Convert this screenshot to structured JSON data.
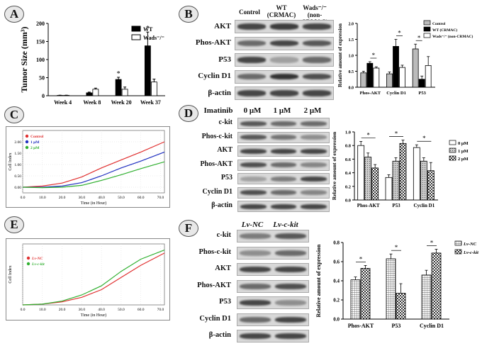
{
  "panels": {
    "A": {
      "letter": "A",
      "chart_data": {
        "type": "bar",
        "ylabel": "Tumor Size (mm³)",
        "ylim": [
          0,
          200
        ],
        "yticks": [
          "0",
          "50",
          "100",
          "150",
          "200"
        ],
        "categories": [
          "Week 4",
          "Week 8",
          "Week 20",
          "Week 37"
        ],
        "series": [
          {
            "name": "WT",
            "values": [
              1,
              8,
              45,
              138
            ],
            "errors": [
              0.5,
              2,
              6,
              38
            ]
          },
          {
            "name": "Wads⁻/⁻",
            "values": [
              1,
              18,
              18,
              38
            ],
            "errors": [
              0.5,
              3,
              6,
              8
            ]
          }
        ],
        "annotations": [
          "*",
          "*"
        ],
        "legend": "top-right"
      }
    },
    "B": {
      "letter": "B",
      "headers": [
        "Control",
        "WT (CRMAC)",
        "Wads⁻/⁻ (non-CRMAC)"
      ],
      "blot_labels": [
        "AKT",
        "Phos-AKT",
        "P53",
        "Cyclin D1",
        "β-actin"
      ],
      "chart_data": {
        "type": "bar",
        "ylabel": "Relative amount of expression",
        "ylim": [
          0,
          2.0
        ],
        "yticks": [
          "0.0",
          "0.5",
          "1.0",
          "1.5",
          "2.0"
        ],
        "categories": [
          "Phos-AKT",
          "Cyclin D1",
          "P53"
        ],
        "series": [
          {
            "name": "Control",
            "values": [
              0.45,
              0.42,
              1.2
            ],
            "errors": [
              0.05,
              0.06,
              0.15
            ]
          },
          {
            "name": "WT (CRMAC)",
            "values": [
              0.75,
              1.28,
              0.25
            ],
            "errors": [
              0.05,
              0.22,
              0.1
            ]
          },
          {
            "name": "Wads⁻/⁻ (non-CRMAC)",
            "values": [
              0.6,
              0.62,
              0.68
            ],
            "errors": [
              0.04,
              0.07,
              0.28
            ]
          }
        ],
        "annotations": [
          "*",
          "*",
          "*"
        ],
        "legend": "top-right"
      }
    },
    "C": {
      "letter": "C",
      "chart_data": {
        "type": "line",
        "xlabel": "Time (in Hour)",
        "ylabel": "Cell Index",
        "xlim": [
          0,
          72
        ],
        "ylim": [
          -0.25,
          2.5
        ],
        "xticks": [
          "0.0",
          "10.0",
          "20.0",
          "30.0",
          "40.0",
          "50.0",
          "60.0",
          "70.0"
        ],
        "yticks": [
          "0.00",
          "0.50",
          "1.00",
          "1.50",
          "2.00"
        ],
        "series": [
          {
            "name": "Control",
            "color": "#e03030",
            "x": [
              0,
              10,
              20,
              30,
              40,
              50,
              60,
              72
            ],
            "y": [
              0,
              0.05,
              0.18,
              0.45,
              0.85,
              1.2,
              1.55,
              2.0
            ]
          },
          {
            "name": "1 μM",
            "color": "#2030c0",
            "x": [
              0,
              10,
              20,
              30,
              40,
              50,
              60,
              72
            ],
            "y": [
              0,
              0.0,
              0.05,
              0.2,
              0.5,
              0.85,
              1.15,
              1.55
            ]
          },
          {
            "name": "2 μM",
            "color": "#30b030",
            "x": [
              0,
              10,
              20,
              30,
              40,
              50,
              60,
              72
            ],
            "y": [
              0,
              -0.02,
              0.0,
              0.08,
              0.3,
              0.55,
              0.82,
              1.12
            ]
          }
        ]
      }
    },
    "D": {
      "letter": "D",
      "headers": [
        "Imatinib",
        "0 μM",
        "1 μM",
        "2 μM"
      ],
      "blot_labels": [
        "c-kit",
        "Phos-c-kit",
        "AKT",
        "Phos-AKT",
        "P53",
        "Cyclin D1",
        "β-actin"
      ],
      "chart_data": {
        "type": "bar",
        "ylabel": "Relative amount of expression",
        "ylim": [
          0,
          1.0
        ],
        "yticks": [
          "0.0",
          "0.2",
          "0.4",
          "0.6",
          "0.8",
          "1.0"
        ],
        "categories": [
          "Phos-AKT",
          "P53",
          "Cyclin D1"
        ],
        "series": [
          {
            "name": "0 μM",
            "values": [
              0.8,
              0.33,
              0.77
            ],
            "errors": [
              0.06,
              0.04,
              0.04
            ]
          },
          {
            "name": "1 μM",
            "values": [
              0.63,
              0.57,
              0.57
            ],
            "errors": [
              0.06,
              0.05,
              0.05
            ]
          },
          {
            "name": "2 μM",
            "values": [
              0.47,
              0.83,
              0.43
            ],
            "errors": [
              0.05,
              0.05,
              0.12
            ]
          }
        ],
        "annotations": [
          "*",
          "*",
          "*"
        ],
        "legend": "top-right"
      }
    },
    "E": {
      "letter": "E",
      "chart_data": {
        "type": "line",
        "xlabel": "Time (in Hour)",
        "ylabel": "Cell Index",
        "xlim": [
          0,
          72
        ],
        "ylim": [
          0,
          4
        ],
        "xticks": [
          "0.0",
          "10.0",
          "20.0",
          "30.0",
          "40.0",
          "50.0",
          "60.0",
          "70.0"
        ],
        "series": [
          {
            "name": "Lv-NC",
            "color": "#e03030",
            "x": [
              0,
              10,
              20,
              30,
              40,
              50,
              60,
              72
            ],
            "y": [
              0,
              0.05,
              0.2,
              0.5,
              1.0,
              1.8,
              2.6,
              3.4
            ]
          },
          {
            "name": "Lv-c-kit",
            "color": "#30b030",
            "x": [
              0,
              10,
              20,
              30,
              40,
              50,
              60,
              72
            ],
            "y": [
              0,
              0.05,
              0.25,
              0.65,
              1.25,
              2.2,
              3.0,
              3.6
            ]
          }
        ]
      }
    },
    "F": {
      "letter": "F",
      "headers": [
        "Lv-NC",
        "Lv-c-kit"
      ],
      "blot_labels": [
        "c-kit",
        "Phos-c-kit",
        "AKT",
        "Phos-AKT",
        "P53",
        "Cyclin D1",
        "β-actin"
      ],
      "chart_data": {
        "type": "bar",
        "ylabel": "Relative amount of expression",
        "ylim": [
          0,
          0.8
        ],
        "yticks": [
          "0.0",
          "0.2",
          "0.4",
          "0.6",
          "0.8"
        ],
        "categories": [
          "Phos-AKT",
          "P53",
          "Cyclin D1"
        ],
        "series": [
          {
            "name": "Lv-NC",
            "values": [
              0.41,
              0.63,
              0.46
            ],
            "errors": [
              0.03,
              0.05,
              0.05
            ]
          },
          {
            "name": "Lv-c-kit",
            "values": [
              0.53,
              0.27,
              0.69
            ],
            "errors": [
              0.03,
              0.1,
              0.04
            ]
          }
        ],
        "annotations": [
          "*",
          "*",
          "*"
        ],
        "legend": "top-right"
      }
    }
  }
}
